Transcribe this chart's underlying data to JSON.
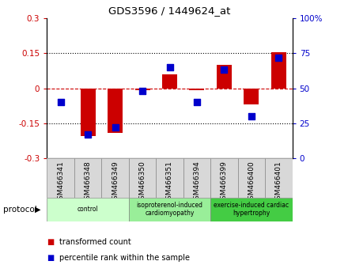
{
  "title": "GDS3596 / 1449624_at",
  "samples": [
    "GSM466341",
    "GSM466348",
    "GSM466349",
    "GSM466350",
    "GSM466351",
    "GSM466394",
    "GSM466399",
    "GSM466400",
    "GSM466401"
  ],
  "transformed_counts": [
    0.0,
    -0.205,
    -0.19,
    -0.008,
    0.06,
    -0.008,
    0.1,
    -0.07,
    0.155
  ],
  "percentile_ranks": [
    40,
    17,
    22,
    48,
    65,
    40,
    63,
    30,
    72
  ],
  "ylim_left": [
    -0.3,
    0.3
  ],
  "ylim_right": [
    0,
    100
  ],
  "yticks_left": [
    -0.3,
    -0.15,
    0.0,
    0.15,
    0.3
  ],
  "yticks_right": [
    0,
    25,
    50,
    75,
    100
  ],
  "ytick_labels_left": [
    "-0.3",
    "-0.15",
    "0",
    "0.15",
    "0.3"
  ],
  "ytick_labels_right": [
    "0",
    "25",
    "50",
    "75",
    "100%"
  ],
  "bar_color": "#cc0000",
  "dot_color": "#0000cc",
  "hline_color": "#cc0000",
  "groups": [
    {
      "label": "control",
      "start": 0,
      "end": 3,
      "color": "#ccffcc"
    },
    {
      "label": "isoproterenol-induced\ncardiomyopathy",
      "start": 3,
      "end": 6,
      "color": "#99ee99"
    },
    {
      "label": "exercise-induced cardiac\nhypertrophy",
      "start": 6,
      "end": 9,
      "color": "#44cc44"
    }
  ],
  "protocol_label": "protocol",
  "legend_items": [
    {
      "label": "transformed count",
      "color": "#cc0000"
    },
    {
      "label": "percentile rank within the sample",
      "color": "#0000cc"
    }
  ],
  "bar_width": 0.55,
  "dot_size": 30
}
